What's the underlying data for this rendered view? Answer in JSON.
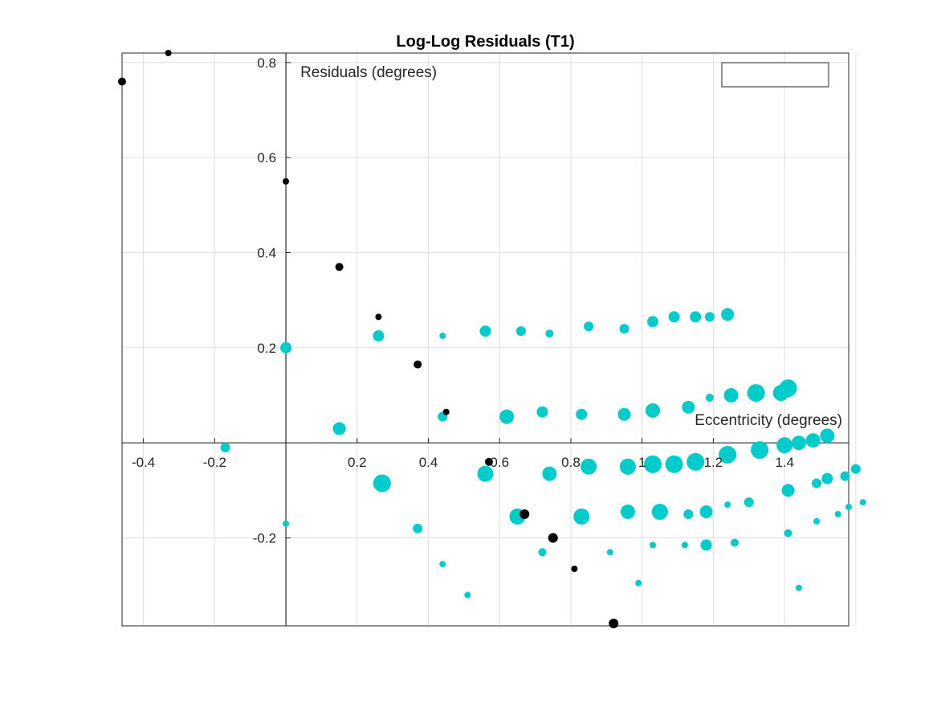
{
  "chart_data": {
    "type": "scatter",
    "title": "Log-Log Residuals (T1)",
    "xlabel": "Eccentricity (degrees)",
    "ylabel": "Residuals (degrees)",
    "xlim": [
      -0.46,
      1.58
    ],
    "ylim": [
      -0.385,
      0.82
    ],
    "grid": true,
    "axis_location": "origin",
    "legend": {
      "placement": "top-right",
      "entries": []
    },
    "x_ticks": [
      {
        "value": -0.4,
        "label": "-0.4"
      },
      {
        "value": -0.2,
        "label": "-0.2"
      },
      {
        "value": 0.2,
        "label": "0.2"
      },
      {
        "value": 0.4,
        "label": "0.4"
      },
      {
        "value": 0.6,
        "label": "0.6"
      },
      {
        "value": 0.8,
        "label": "0.8"
      },
      {
        "value": 1.0,
        "label": "1"
      },
      {
        "value": 1.2,
        "label": "1.2"
      },
      {
        "value": 1.4,
        "label": "1.4"
      }
    ],
    "x_grid_extra": [
      1.6
    ],
    "y_ticks": [
      {
        "value": -0.2,
        "label": "-0.2"
      },
      {
        "value": 0.2,
        "label": "0.2"
      },
      {
        "value": 0.4,
        "label": "0.4"
      },
      {
        "value": 0.6,
        "label": "0.6"
      },
      {
        "value": 0.8,
        "label": "0.8"
      }
    ],
    "colors": {
      "cyan": "#00cccc",
      "black": "#000000",
      "grid": "#dfdfdf",
      "axis": "#262626"
    },
    "series": [
      {
        "color": "cyan",
        "points": [
          [
            -0.17,
            -0.01,
            6
          ],
          [
            0.0,
            0.2,
            7
          ],
          [
            0.0,
            -0.17,
            4
          ],
          [
            0.15,
            0.03,
            8
          ],
          [
            0.26,
            0.225,
            7
          ],
          [
            0.27,
            -0.085,
            11
          ],
          [
            0.37,
            -0.18,
            6
          ],
          [
            0.44,
            0.055,
            6
          ],
          [
            0.44,
            0.225,
            4
          ],
          [
            0.44,
            -0.255,
            4
          ],
          [
            0.51,
            -0.32,
            4
          ],
          [
            0.56,
            0.235,
            7
          ],
          [
            0.56,
            -0.065,
            10
          ],
          [
            0.62,
            0.055,
            9
          ],
          [
            0.65,
            -0.155,
            10
          ],
          [
            0.66,
            0.235,
            6
          ],
          [
            0.72,
            0.065,
            7
          ],
          [
            0.72,
            -0.23,
            5
          ],
          [
            0.74,
            0.23,
            5
          ],
          [
            0.74,
            -0.065,
            9
          ],
          [
            0.83,
            0.06,
            7
          ],
          [
            0.83,
            -0.155,
            10
          ],
          [
            0.85,
            0.245,
            6
          ],
          [
            0.85,
            -0.05,
            10
          ],
          [
            0.91,
            -0.23,
            4
          ],
          [
            0.95,
            0.06,
            8
          ],
          [
            0.95,
            0.24,
            6
          ],
          [
            0.96,
            -0.145,
            9
          ],
          [
            0.96,
            -0.05,
            10
          ],
          [
            0.99,
            -0.295,
            4
          ],
          [
            1.03,
            0.068,
            9
          ],
          [
            1.03,
            0.255,
            7
          ],
          [
            1.03,
            -0.045,
            11
          ],
          [
            1.05,
            -0.145,
            10
          ],
          [
            1.03,
            -0.215,
            4
          ],
          [
            1.09,
            0.265,
            7
          ],
          [
            1.09,
            -0.045,
            11
          ],
          [
            1.13,
            0.075,
            8
          ],
          [
            1.13,
            -0.15,
            6
          ],
          [
            1.12,
            -0.215,
            4
          ],
          [
            1.15,
            0.265,
            7
          ],
          [
            1.15,
            -0.04,
            11
          ],
          [
            1.18,
            -0.215,
            7
          ],
          [
            1.18,
            -0.145,
            8
          ],
          [
            1.19,
            0.265,
            6
          ],
          [
            1.19,
            0.095,
            5
          ],
          [
            1.24,
            0.27,
            8
          ],
          [
            1.24,
            -0.025,
            11
          ],
          [
            1.24,
            -0.13,
            4
          ],
          [
            1.25,
            0.1,
            9
          ],
          [
            1.26,
            -0.21,
            5
          ],
          [
            1.3,
            -0.125,
            6
          ],
          [
            1.32,
            0.105,
            11
          ],
          [
            1.33,
            -0.015,
            11
          ],
          [
            1.39,
            0.105,
            10
          ],
          [
            1.4,
            -0.005,
            10
          ],
          [
            1.41,
            0.115,
            11
          ],
          [
            1.41,
            -0.1,
            8
          ],
          [
            1.41,
            -0.19,
            5
          ],
          [
            1.44,
            0.0,
            9
          ],
          [
            1.44,
            -0.305,
            4
          ],
          [
            1.48,
            0.005,
            9
          ],
          [
            1.49,
            -0.085,
            6
          ],
          [
            1.49,
            -0.165,
            4
          ],
          [
            1.52,
            0.015,
            9
          ],
          [
            1.52,
            -0.075,
            7
          ],
          [
            1.55,
            -0.15,
            4
          ],
          [
            1.57,
            -0.07,
            6
          ],
          [
            1.58,
            -0.135,
            4
          ],
          [
            1.6,
            -0.055,
            6
          ],
          [
            1.62,
            -0.125,
            4
          ]
        ]
      },
      {
        "color": "black",
        "points": [
          [
            -0.46,
            0.76,
            5
          ],
          [
            -0.33,
            0.82,
            4
          ],
          [
            0.0,
            0.55,
            4
          ],
          [
            0.15,
            0.37,
            5
          ],
          [
            0.26,
            0.265,
            4
          ],
          [
            0.37,
            0.165,
            5
          ],
          [
            0.45,
            0.065,
            4
          ],
          [
            0.57,
            -0.04,
            5
          ],
          [
            0.67,
            -0.15,
            6
          ],
          [
            0.75,
            -0.2,
            6
          ],
          [
            0.81,
            -0.265,
            4
          ],
          [
            0.92,
            -0.38,
            6
          ]
        ]
      }
    ]
  }
}
